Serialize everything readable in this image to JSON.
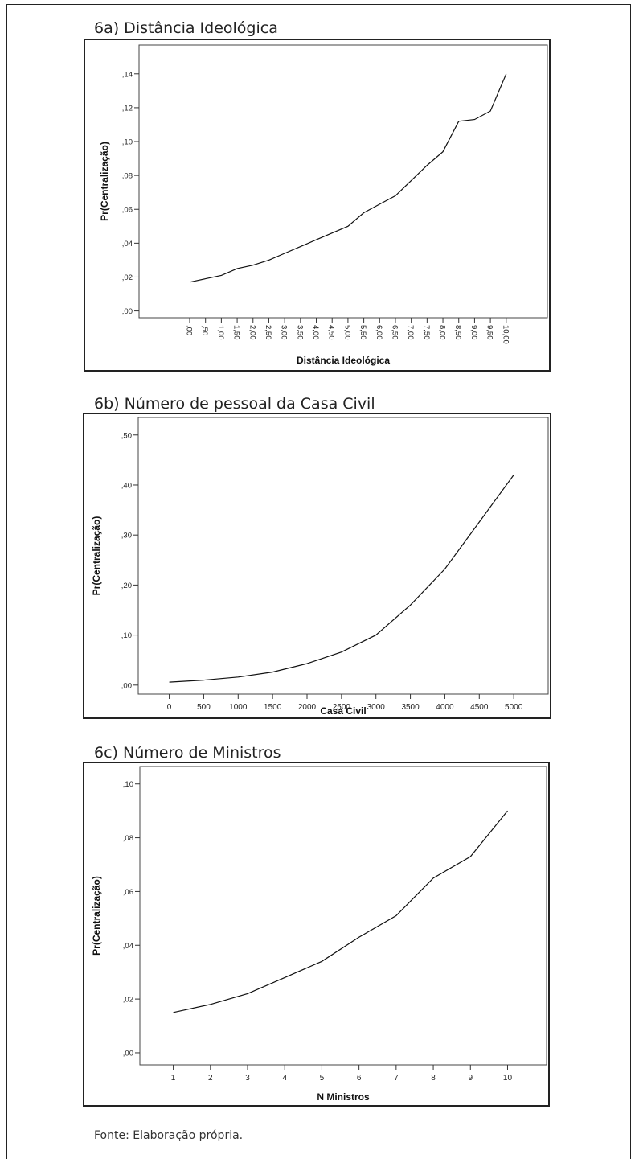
{
  "source_note": "Fonte: Elaboração própria.",
  "chart_data": [
    {
      "panel_title": "6a) Distância Ideológica",
      "type": "line",
      "xlabel": "Distância Ideológica",
      "ylabel": "Pr(Centralização)",
      "x_tick_labels": [
        ".00",
        ",50",
        "1,00",
        "1,50",
        "2,00",
        "2,50",
        "3,00",
        "3,50",
        "4,00",
        "4,50",
        "5,00",
        "5,50",
        "6,00",
        "6,50",
        "7,00",
        "7,50",
        "8,00",
        "8,50",
        "9,00",
        "9,50",
        "10,00"
      ],
      "x": [
        0,
        0.5,
        1,
        1.5,
        2,
        2.5,
        3,
        3.5,
        4,
        4.5,
        5,
        5.5,
        6,
        6.5,
        7,
        7.5,
        8,
        8.5,
        9,
        9.5,
        10
      ],
      "y": [
        0.017,
        0.019,
        0.021,
        0.025,
        0.027,
        0.03,
        0.034,
        0.038,
        0.042,
        0.046,
        0.05,
        0.058,
        0.063,
        0.068,
        0.077,
        0.086,
        0.094,
        0.112,
        0.113,
        0.118,
        0.14
      ],
      "y_ticks": [
        0,
        0.02,
        0.04,
        0.06,
        0.08,
        0.1,
        0.12,
        0.14
      ],
      "y_tick_labels": [
        ",00",
        ",02",
        ",04",
        ",06",
        ",08",
        ",10",
        ",12",
        ",14"
      ],
      "ylim": [
        -0.004,
        0.157
      ],
      "xlim": [
        -1.6,
        11.3
      ],
      "x_ticks_rotated": true
    },
    {
      "panel_title": "6b) Número de pessoal da Casa Civil",
      "type": "line",
      "xlabel": "Casa Civil",
      "ylabel": "Pr(Centralização)",
      "x_tick_labels": [
        "0",
        "500",
        "1000",
        "1500",
        "2000",
        "2500",
        "3000",
        "3500",
        "4000",
        "4500",
        "5000"
      ],
      "x": [
        0,
        500,
        1000,
        1500,
        2000,
        2500,
        3000,
        3500,
        4000,
        4500,
        5000
      ],
      "y": [
        0.006,
        0.01,
        0.016,
        0.026,
        0.043,
        0.066,
        0.1,
        0.16,
        0.232,
        0.326,
        0.42
      ],
      "y_ticks": [
        0,
        0.1,
        0.2,
        0.3,
        0.4,
        0.5
      ],
      "y_tick_labels": [
        ",00",
        ",10",
        ",20",
        ",30",
        ",40",
        ",50"
      ],
      "ylim": [
        -0.018,
        0.535
      ],
      "xlim": [
        -450,
        5500
      ],
      "x_ticks_rotated": false
    },
    {
      "panel_title": "6c) Número de Ministros",
      "type": "line",
      "xlabel": "N Ministros",
      "ylabel": "Pr(Centralização)",
      "x_tick_labels": [
        "1",
        "2",
        "3",
        "4",
        "5",
        "6",
        "7",
        "8",
        "9",
        "10"
      ],
      "x": [
        1,
        2,
        3,
        4,
        5,
        6,
        7,
        8,
        9,
        10
      ],
      "y": [
        0.015,
        0.018,
        0.022,
        0.028,
        0.034,
        0.043,
        0.051,
        0.065,
        0.073,
        0.09
      ],
      "y_ticks": [
        0,
        0.02,
        0.04,
        0.06,
        0.08,
        0.1
      ],
      "y_tick_labels": [
        ",00",
        ",02",
        ",04",
        ",06",
        ",08",
        ",10"
      ],
      "ylim": [
        -0.0045,
        0.1065
      ],
      "xlim": [
        0.1,
        11.05
      ],
      "x_ticks_rotated": false
    }
  ]
}
